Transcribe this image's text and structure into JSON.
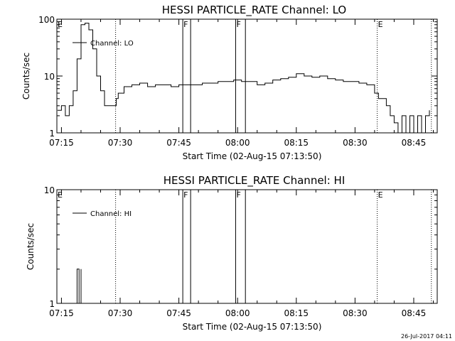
{
  "chart_data": [
    {
      "type": "line",
      "title": "HESSI PARTICLE_RATE Channel: LO",
      "xlabel": "Start Time (02-Aug-15 07:13:50)",
      "ylabel": "Counts/sec",
      "yscale": "log",
      "ylim": [
        1,
        100
      ],
      "ytick_labels": [
        "1",
        "10",
        "100"
      ],
      "ytick_values": [
        1,
        10,
        100
      ],
      "xlim": [
        "07:13:50",
        "08:51:00"
      ],
      "xtick_labels": [
        "07:15",
        "07:30",
        "07:45",
        "08:00",
        "08:15",
        "08:30",
        "08:45"
      ],
      "legend": {
        "position": "top-left",
        "entries": [
          "Channel: LO"
        ]
      },
      "flags": [
        {
          "label": "E",
          "time": "07:13:50",
          "style": "none"
        },
        {
          "label": "",
          "time": "07:28:50",
          "style": "dotted"
        },
        {
          "label": "F",
          "time": "07:46:00",
          "style": "solid"
        },
        {
          "label": "",
          "time": "07:48:00",
          "style": "solid"
        },
        {
          "label": "F",
          "time": "07:59:30",
          "style": "solid"
        },
        {
          "label": "",
          "time": "08:02:00",
          "style": "solid"
        },
        {
          "label": "E",
          "time": "08:35:40",
          "style": "dotted"
        },
        {
          "label": "",
          "time": "08:49:30",
          "style": "dotted"
        }
      ],
      "series": [
        {
          "name": "Channel: LO",
          "x": [
            "07:14:00",
            "07:15:00",
            "07:16:00",
            "07:17:00",
            "07:18:00",
            "07:19:00",
            "07:20:00",
            "07:21:00",
            "07:22:00",
            "07:23:00",
            "07:24:00",
            "07:25:00",
            "07:26:00",
            "07:27:00",
            "07:28:00",
            "07:29:00",
            "07:29:30",
            "07:31:00",
            "07:33:00",
            "07:35:00",
            "07:37:00",
            "07:39:00",
            "07:41:00",
            "07:43:00",
            "07:45:00",
            "07:47:00",
            "07:49:00",
            "07:51:00",
            "07:53:00",
            "07:55:00",
            "07:57:00",
            "07:59:00",
            "08:01:00",
            "08:03:00",
            "08:05:00",
            "08:07:00",
            "08:09:00",
            "08:11:00",
            "08:13:00",
            "08:15:00",
            "08:17:00",
            "08:19:00",
            "08:21:00",
            "08:23:00",
            "08:25:00",
            "08:27:00",
            "08:29:00",
            "08:31:00",
            "08:33:00",
            "08:35:00",
            "08:36:00",
            "08:38:00",
            "08:39:00",
            "08:40:00",
            "08:41:00",
            "08:42:00",
            "08:43:00",
            "08:44:00",
            "08:45:00",
            "08:46:00",
            "08:47:00",
            "08:48:00",
            "08:49:00"
          ],
          "y": [
            2.5,
            3,
            2,
            3,
            5.5,
            20,
            80,
            85,
            65,
            30,
            10,
            5.5,
            3,
            3,
            3,
            4,
            5,
            6.5,
            7,
            7.5,
            6.5,
            7,
            7,
            6.5,
            7,
            7,
            7,
            7.5,
            7.5,
            8,
            8,
            8.5,
            8,
            8,
            7,
            7.5,
            8.5,
            9,
            9.5,
            11,
            10,
            9.5,
            10,
            9,
            8.5,
            8,
            8,
            7.5,
            7,
            5,
            4,
            3,
            2,
            1.5,
            1,
            2,
            1,
            2,
            1,
            2,
            1,
            2,
            2.5
          ]
        }
      ]
    },
    {
      "type": "line",
      "title": "HESSI PARTICLE_RATE Channel: HI",
      "xlabel": "Start Time (02-Aug-15 07:13:50)",
      "ylabel": "Counts/sec",
      "yscale": "log",
      "ylim": [
        1,
        10
      ],
      "ytick_labels": [
        "1",
        "10"
      ],
      "ytick_values": [
        1,
        10
      ],
      "xlim": [
        "07:13:50",
        "08:51:00"
      ],
      "xtick_labels": [
        "07:15",
        "07:30",
        "07:45",
        "08:00",
        "08:15",
        "08:30",
        "08:45"
      ],
      "legend": {
        "position": "top-left",
        "entries": [
          "Channel: HI"
        ]
      },
      "flags": [
        {
          "label": "E",
          "time": "07:13:50",
          "style": "none"
        },
        {
          "label": "",
          "time": "07:28:50",
          "style": "dotted"
        },
        {
          "label": "F",
          "time": "07:46:00",
          "style": "solid"
        },
        {
          "label": "",
          "time": "07:48:00",
          "style": "solid"
        },
        {
          "label": "F",
          "time": "07:59:30",
          "style": "solid"
        },
        {
          "label": "",
          "time": "08:02:00",
          "style": "solid"
        },
        {
          "label": "E",
          "time": "08:35:40",
          "style": "dotted"
        },
        {
          "label": "",
          "time": "08:49:30",
          "style": "dotted"
        }
      ],
      "series": [
        {
          "name": "Channel: HI",
          "x": [
            "07:19:00",
            "07:19:00",
            "07:19:30",
            "07:19:30",
            "07:20:00",
            "07:20:00"
          ],
          "y": [
            1,
            2,
            2,
            1,
            1,
            2
          ]
        }
      ]
    }
  ],
  "timestamp": "26-Jul-2017 04:11"
}
